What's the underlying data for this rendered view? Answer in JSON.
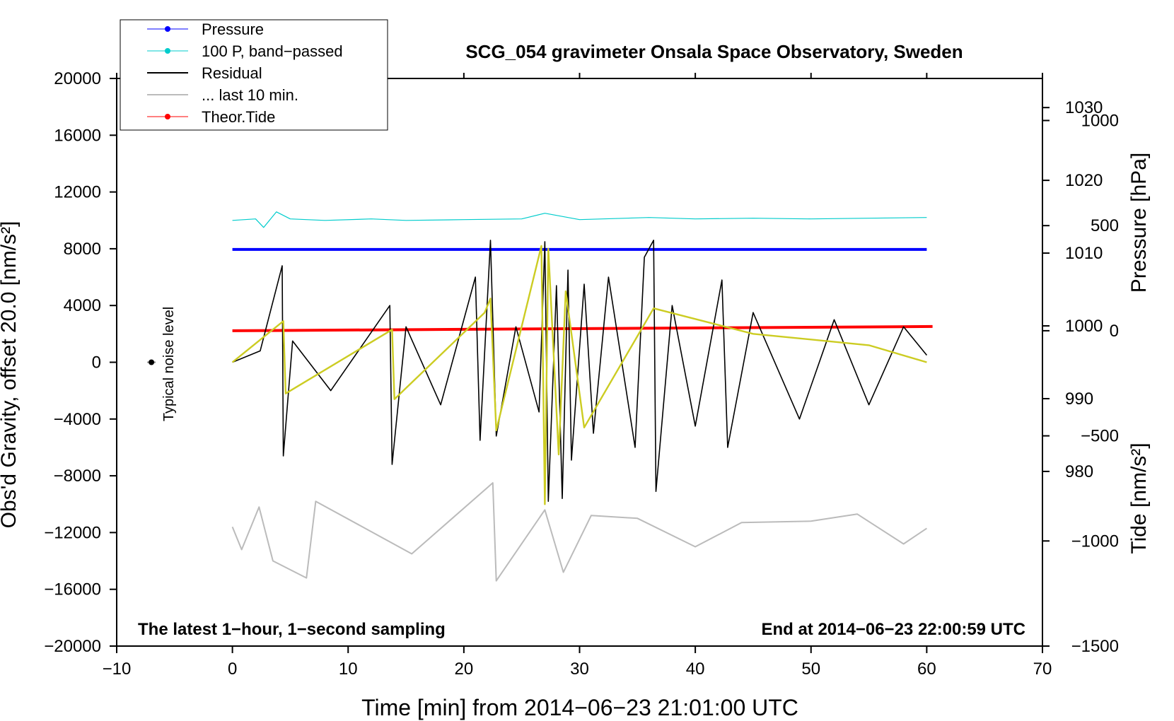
{
  "chart_data": {
    "type": "line",
    "title": "SCG_054 gravimeter Onsala Space Observatory, Sweden",
    "xlabel": "Time [min] from 2014−06−23 21:01:00 UTC",
    "ylabel_left": "Obs'd Gravity, offset 20.0 [nm/s²]",
    "ylabel_right_pressure": "Pressure [hPa]",
    "ylabel_right_tide": "Tide [nm/s²]",
    "xlim": [
      -10,
      70
    ],
    "ylim": [
      -20000,
      20000
    ],
    "x_ticks": [
      "−10",
      "0",
      "10",
      "20",
      "30",
      "40",
      "50",
      "60",
      "70"
    ],
    "x_tick_values": [
      -10,
      0,
      10,
      20,
      30,
      40,
      50,
      60,
      70
    ],
    "y_ticks": [
      "20000",
      "16000",
      "12000",
      "8000",
      "4000",
      "0",
      "−4000",
      "−8000",
      "−12000",
      "−16000",
      "−20000"
    ],
    "y_tick_values": [
      20000,
      16000,
      12000,
      8000,
      4000,
      0,
      -4000,
      -8000,
      -12000,
      -16000,
      -20000
    ],
    "pressure_axis": {
      "ticks": [
        "1030",
        "1020",
        "1010",
        "1000",
        "990",
        "980"
      ],
      "tick_values": [
        1030,
        1020,
        1010,
        1000,
        990,
        980
      ],
      "range": [
        956,
        1034
      ]
    },
    "tide_axis": {
      "ticks": [
        "1000",
        "500",
        "0",
        "−500",
        "−1000",
        "−1500"
      ],
      "tick_values": [
        1000,
        500,
        0,
        -500,
        -1000,
        -1500
      ],
      "range": [
        -1500,
        1200
      ]
    },
    "legend": {
      "position": "top-left",
      "entries": [
        {
          "label": "Pressure",
          "color": "#0000ff",
          "marker": true
        },
        {
          "label": "100 P, band−passed",
          "color": "#00cccc",
          "marker": true
        },
        {
          "label": "Residual",
          "color": "#000000",
          "marker": false
        },
        {
          "label": "... last 10 min.",
          "color": "#bbbbbb",
          "marker": false
        },
        {
          "label": "Theor.Tide",
          "color": "#ff0000",
          "marker": true
        }
      ]
    },
    "annotations": {
      "bottom_left": "The latest 1−hour, 1−second sampling",
      "bottom_right": "End at 2014−06−23 22:00:59 UTC",
      "noise_label": "Typical noise level"
    },
    "noise_marker": {
      "x": -7,
      "y": 0
    },
    "series": [
      {
        "name": "Pressure",
        "color": "#0000ff",
        "axis": "pressure",
        "x": [
          0,
          60
        ],
        "values": [
          1010.5,
          1010.5
        ]
      },
      {
        "name": "100 P, band−passed",
        "color": "#00cccc",
        "axis": "gravity",
        "x": [
          0,
          2,
          2.7,
          3.8,
          5,
          8,
          12,
          15,
          20,
          25,
          27,
          30,
          36,
          40,
          45,
          50,
          55,
          60
        ],
        "values": [
          10000,
          10100,
          9500,
          10600,
          10100,
          10000,
          10100,
          10000,
          10050,
          10100,
          10500,
          10050,
          10200,
          10100,
          10150,
          10100,
          10150,
          10200
        ]
      },
      {
        "name": "Residual",
        "color": "#000000",
        "axis": "gravity",
        "x": [
          0,
          2.4,
          4.3,
          4.4,
          5.2,
          8.5,
          13.6,
          13.8,
          15,
          18,
          21,
          21.4,
          22.3,
          22.8,
          24.5,
          26.5,
          27,
          27.3,
          28,
          28.5,
          29,
          29.3,
          30.4,
          31.2,
          32.5,
          34.8,
          35.6,
          36.4,
          36.6,
          38,
          40,
          42.3,
          42.8,
          45,
          49,
          52,
          55,
          58,
          60
        ],
        "values": [
          0,
          800,
          6800,
          -6600,
          1500,
          -2000,
          4000,
          -7200,
          2500,
          -3000,
          6000,
          -5500,
          8600,
          -5200,
          2500,
          -3500,
          8500,
          -9800,
          5400,
          -9600,
          6500,
          -6900,
          5500,
          -5000,
          6000,
          -6000,
          7400,
          8600,
          -9100,
          4000,
          -4500,
          5800,
          -6000,
          3500,
          -4000,
          3000,
          -3000,
          2500,
          500
        ]
      },
      {
        "name": "... last 10 min.",
        "color": "#bbbbbb",
        "axis": "gravity",
        "x": [
          0,
          0.8,
          2.3,
          3.5,
          6.4,
          7.2,
          15.5,
          22.5,
          22.8,
          27,
          28.6,
          31,
          35,
          40,
          44,
          50,
          54,
          58,
          60
        ],
        "values": [
          -11600,
          -13200,
          -10200,
          -14000,
          -15200,
          -9800,
          -13500,
          -8500,
          -15400,
          -10400,
          -14800,
          -10800,
          -11000,
          -13000,
          -11300,
          -11200,
          -10700,
          -12800,
          -11700
        ]
      },
      {
        "name": "Theor.Tide",
        "color": "#ff0000",
        "axis": "tide",
        "x": [
          0,
          60.5
        ],
        "values": [
          0,
          20
        ]
      },
      {
        "name": "Fit (yellow)",
        "color": "#cccc22",
        "axis": "gravity",
        "x": [
          0,
          4.4,
          4.6,
          13.8,
          14,
          21.8,
          22.3,
          22.8,
          26.7,
          27,
          27.3,
          28.2,
          28.8,
          30.4,
          36.4,
          45,
          55,
          60
        ],
        "values": [
          0,
          2900,
          -2200,
          2300,
          -2600,
          3500,
          4500,
          -4800,
          8200,
          -10000,
          8000,
          -6500,
          5000,
          -4600,
          3800,
          2000,
          1200,
          0
        ]
      }
    ]
  }
}
